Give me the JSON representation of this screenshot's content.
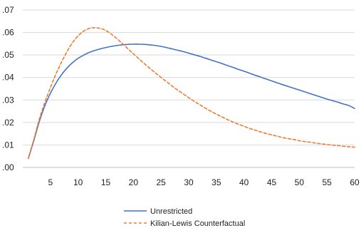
{
  "chart_data": {
    "type": "line",
    "title": "",
    "xlabel": "",
    "ylabel": "",
    "xlim": [
      0,
      60
    ],
    "ylim": [
      0,
      0.07
    ],
    "x_ticks": [
      5,
      10,
      15,
      20,
      25,
      30,
      35,
      40,
      45,
      50,
      55,
      60
    ],
    "x_tick_labels": [
      "5",
      "10",
      "15",
      "20",
      "25",
      "30",
      "35",
      "40",
      "45",
      "50",
      "55",
      "60"
    ],
    "y_ticks": [
      0,
      0.01,
      0.02,
      0.03,
      0.04,
      0.05,
      0.06,
      0.07
    ],
    "y_tick_labels": [
      ".00",
      ".01",
      ".02",
      ".03",
      ".04",
      ".05",
      ".06",
      ".07"
    ],
    "grid": "horizontal",
    "legend_position": "bottom",
    "series": [
      {
        "name": "Unrestricted",
        "color": "#4472C4",
        "style": "solid",
        "x": [
          1,
          2,
          3,
          4,
          5,
          6,
          7,
          8,
          9,
          10,
          11,
          12,
          13,
          14,
          15,
          16,
          17,
          18,
          19,
          20,
          21,
          22,
          23,
          24,
          25,
          26,
          27,
          28,
          29,
          30,
          31,
          32,
          33,
          34,
          35,
          36,
          37,
          38,
          39,
          40,
          41,
          42,
          43,
          44,
          45,
          46,
          47,
          48,
          49,
          50,
          51,
          52,
          53,
          54,
          55,
          56,
          57,
          58,
          59,
          60
        ],
        "values": [
          0.004,
          0.012,
          0.0205,
          0.0275,
          0.033,
          0.0375,
          0.0412,
          0.0442,
          0.0466,
          0.0485,
          0.0499,
          0.0511,
          0.052,
          0.0527,
          0.0533,
          0.0538,
          0.0542,
          0.0545,
          0.0547,
          0.0548,
          0.0548,
          0.0547,
          0.0545,
          0.0542,
          0.0538,
          0.0533,
          0.0527,
          0.0521,
          0.0515,
          0.0508,
          0.0501,
          0.0494,
          0.0486,
          0.0478,
          0.047,
          0.0462,
          0.0453,
          0.0445,
          0.0436,
          0.0428,
          0.0419,
          0.041,
          0.0402,
          0.0393,
          0.0385,
          0.0376,
          0.0368,
          0.036,
          0.0352,
          0.0344,
          0.0336,
          0.0328,
          0.032,
          0.0312,
          0.0304,
          0.0297,
          0.029,
          0.0282,
          0.0275,
          0.0262
        ]
      },
      {
        "name": "Kilian-Lewis Counterfactual",
        "color": "#ED7D31",
        "style": "dashed",
        "x": [
          1,
          2,
          3,
          4,
          5,
          6,
          7,
          8,
          9,
          10,
          11,
          12,
          13,
          14,
          15,
          16,
          17,
          18,
          19,
          20,
          21,
          22,
          23,
          24,
          25,
          26,
          27,
          28,
          29,
          30,
          31,
          32,
          33,
          34,
          35,
          36,
          37,
          38,
          39,
          40,
          41,
          42,
          43,
          44,
          45,
          46,
          47,
          48,
          49,
          50,
          51,
          52,
          53,
          54,
          55,
          56,
          57,
          58,
          59,
          60
        ],
        "values": [
          0.004,
          0.0125,
          0.0215,
          0.029,
          0.0355,
          0.0415,
          0.0468,
          0.0515,
          0.0555,
          0.0585,
          0.0606,
          0.0618,
          0.0621,
          0.0618,
          0.0609,
          0.0593,
          0.0573,
          0.0551,
          0.0528,
          0.0505,
          0.0483,
          0.0461,
          0.044,
          0.042,
          0.04,
          0.0381,
          0.0362,
          0.0344,
          0.0327,
          0.031,
          0.0294,
          0.0279,
          0.0264,
          0.025,
          0.0237,
          0.0225,
          0.0213,
          0.0202,
          0.0192,
          0.0183,
          0.0174,
          0.0166,
          0.0158,
          0.0151,
          0.0145,
          0.0139,
          0.0133,
          0.0128,
          0.0124,
          0.0119,
          0.0115,
          0.0112,
          0.0108,
          0.0105,
          0.0102,
          0.0099,
          0.0097,
          0.0094,
          0.0092,
          0.009
        ]
      }
    ]
  }
}
